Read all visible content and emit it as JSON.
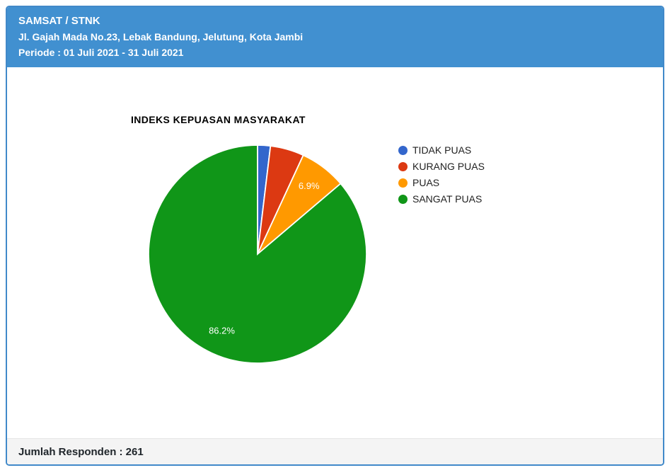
{
  "header": {
    "title": "SAMSAT / STNK",
    "address": "Jl. Gajah Mada No.23, Lebak Bandung, Jelutung, Kota Jambi",
    "periode": "Periode : 01 Juli 2021 - 31 Juli 2021"
  },
  "footer": {
    "respondents": "Jumlah Responden : 261"
  },
  "colors": {
    "header_bg": "#4190d0",
    "card_border": "#4189c9",
    "footer_bg": "#f4f4f4",
    "pie_label_text": "#ffffff",
    "legend_text": "#222222"
  },
  "chart_data": {
    "type": "pie",
    "title": "INDEKS KEPUASAN MASYARAKAT",
    "legend_position": "right",
    "start_angle_deg": 0,
    "direction": "clockwise",
    "slices": [
      {
        "label": "TIDAK PUAS",
        "pct": 1.9,
        "color": "#3366cc",
        "pct_label": "",
        "show_pct_label": false
      },
      {
        "label": "KURANG PUAS",
        "pct": 5.0,
        "color": "#dc3912",
        "pct_label": "",
        "show_pct_label": false
      },
      {
        "label": "PUAS",
        "pct": 6.9,
        "color": "#ff9900",
        "pct_label": "6.9%",
        "show_pct_label": true
      },
      {
        "label": "SANGAT PUAS",
        "pct": 86.2,
        "color": "#109618",
        "pct_label": "86.2%",
        "show_pct_label": true
      }
    ]
  }
}
